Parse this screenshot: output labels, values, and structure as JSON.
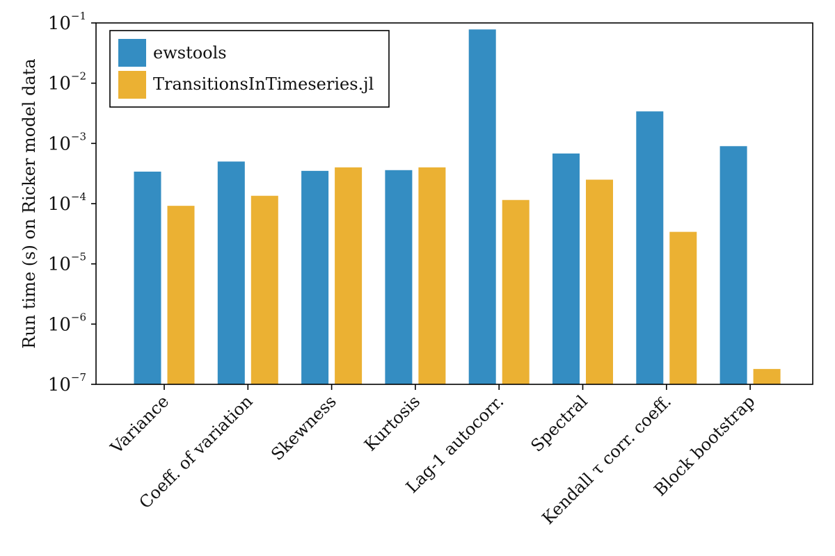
{
  "chart_data": {
    "type": "bar",
    "title": "",
    "xlabel": "",
    "ylabel": "Run time (s) on Ricker model data",
    "yscale": "log",
    "ylim": [
      1e-07,
      0.1
    ],
    "y_ticks": [
      {
        "value": 1e-07,
        "base": "10",
        "exp": "−7"
      },
      {
        "value": 1e-06,
        "base": "10",
        "exp": "−6"
      },
      {
        "value": 1e-05,
        "base": "10",
        "exp": "−5"
      },
      {
        "value": 0.0001,
        "base": "10",
        "exp": "−4"
      },
      {
        "value": 0.001,
        "base": "10",
        "exp": "−3"
      },
      {
        "value": 0.01,
        "base": "10",
        "exp": "−2"
      },
      {
        "value": 0.1,
        "base": "10",
        "exp": "−1"
      }
    ],
    "categories": [
      "Variance",
      "Coeff. of variation",
      "Skewness",
      "Kurtosis",
      "Lag-1 autocorr.",
      "Spectral",
      "Kendall τ corr. coeff.",
      "Block bootstrap"
    ],
    "series": [
      {
        "name": "ewstools",
        "color": "#348dc2",
        "values": [
          0.00034,
          0.0005,
          0.00035,
          0.00036,
          0.078,
          0.00068,
          0.0034,
          0.0009
        ]
      },
      {
        "name": "TransitionsInTimeseries.jl",
        "color": "#ebb133",
        "values": [
          9.2e-05,
          0.000135,
          0.0004,
          0.0004,
          0.000115,
          0.00025,
          3.4e-05,
          1.8e-07
        ]
      }
    ],
    "grid": false,
    "legend_position": "top-left"
  }
}
